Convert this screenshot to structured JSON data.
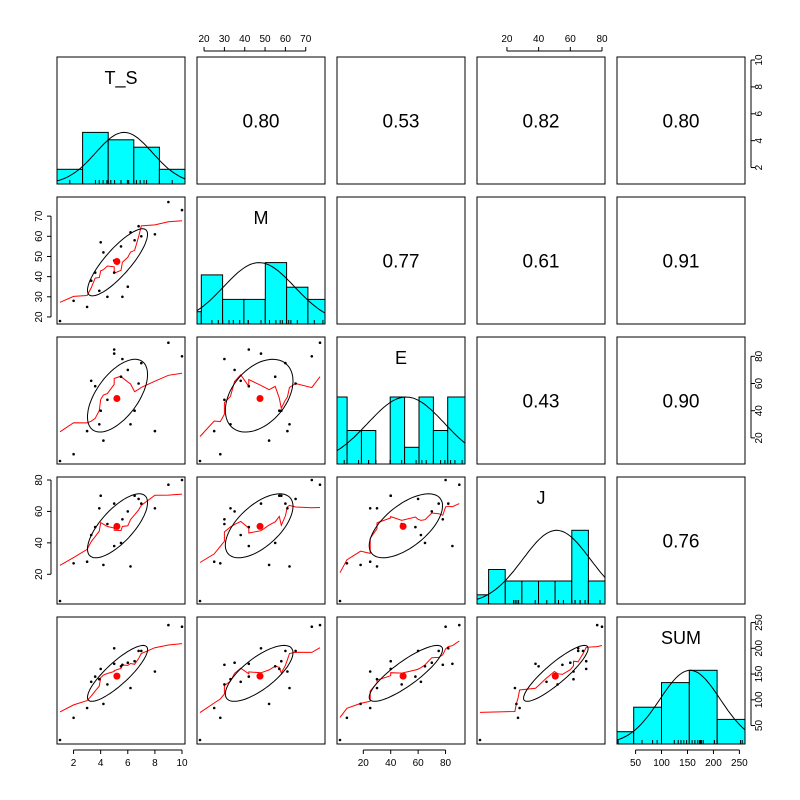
{
  "chart_data": {
    "type": "scatter",
    "chart_kind": "pairs scatterplot matrix (pairs.panels)",
    "variables": [
      "T_S",
      "M",
      "E",
      "J",
      "SUM"
    ],
    "ranges": {
      "T_S": [
        1,
        10
      ],
      "M": [
        18,
        78
      ],
      "E": [
        3,
        92
      ],
      "J": [
        3,
        80
      ],
      "SUM": [
        20,
        255
      ]
    },
    "means": {
      "T_S": 5.2,
      "M": 47.5,
      "E": 49,
      "J": 50.5,
      "SUM": 146
    },
    "ticks": {
      "T_S": [
        "2",
        "4",
        "6",
        "8",
        "10"
      ],
      "M": [
        "20",
        "30",
        "40",
        "50",
        "60",
        "70"
      ],
      "E": [
        "20",
        "40",
        "60",
        "80"
      ],
      "J": [
        "20",
        "40",
        "60",
        "80"
      ],
      "SUM": [
        "50",
        "100",
        "150",
        "200",
        "250"
      ]
    },
    "hist_count_ticks": [
      "2",
      "4",
      "6",
      "8",
      "10"
    ],
    "correlations": [
      {
        "row": "T_S",
        "col": "M",
        "text": "0.80"
      },
      {
        "row": "T_S",
        "col": "E",
        "text": "0.53"
      },
      {
        "row": "T_S",
        "col": "J",
        "text": "0.82"
      },
      {
        "row": "T_S",
        "col": "SUM",
        "text": "0.80"
      },
      {
        "row": "M",
        "col": "E",
        "text": "0.77"
      },
      {
        "row": "M",
        "col": "J",
        "text": "0.61"
      },
      {
        "row": "M",
        "col": "SUM",
        "text": "0.91"
      },
      {
        "row": "E",
        "col": "J",
        "text": "0.43"
      },
      {
        "row": "E",
        "col": "SUM",
        "text": "0.90"
      },
      {
        "row": "J",
        "col": "SUM",
        "text": "0.76"
      }
    ],
    "histograms": {
      "T_S": {
        "bins": [
          0,
          2,
          4,
          6,
          8,
          10
        ],
        "counts": [
          2,
          7,
          6,
          5,
          2
        ],
        "ymax": 10
      },
      "M": {
        "bins": [
          18,
          20,
          30,
          40,
          50,
          60,
          70,
          78
        ],
        "counts": [
          1,
          4,
          2,
          2,
          5,
          3,
          2
        ],
        "ymax": 6
      },
      "E": {
        "bins": [
          3,
          10,
          20,
          30,
          40,
          50,
          60,
          70,
          80,
          92
        ],
        "counts": [
          2,
          1,
          1,
          0,
          2,
          0.5,
          2,
          1,
          2
        ],
        "ymax": 2.2
      },
      "J": {
        "bins": [
          3,
          10,
          20,
          30,
          40,
          50,
          60,
          70,
          80
        ],
        "counts": [
          0.4,
          1.5,
          1,
          1,
          1,
          1,
          3.2,
          1
        ],
        "ymax": 3.2
      },
      "SUM": {
        "bins": [
          20,
          50,
          100,
          150,
          200,
          250
        ],
        "counts": [
          1,
          3,
          5,
          6,
          2
        ],
        "ymax": 6
      }
    },
    "points": [
      {
        "T_S": 1,
        "M": 18,
        "E": 3,
        "J": 3,
        "SUM": 22
      },
      {
        "T_S": 2,
        "M": 28,
        "E": 8,
        "J": 27,
        "SUM": 65
      },
      {
        "T_S": 3,
        "M": 25,
        "E": 25,
        "J": 28,
        "SUM": 84
      },
      {
        "T_S": 3.3,
        "M": 38,
        "E": 62,
        "J": 45,
        "SUM": 135
      },
      {
        "T_S": 3.6,
        "M": 42,
        "E": 58,
        "J": 50,
        "SUM": 145
      },
      {
        "T_S": 3.9,
        "M": 33,
        "E": 30,
        "J": 62,
        "SUM": 140
      },
      {
        "T_S": 4,
        "M": 57,
        "E": 40,
        "J": 70,
        "SUM": 160
      },
      {
        "T_S": 4.2,
        "M": 52,
        "E": 18,
        "J": 26,
        "SUM": 92
      },
      {
        "T_S": 4.5,
        "M": 30,
        "E": 48,
        "J": 52,
        "SUM": 130
      },
      {
        "T_S": 5,
        "M": 48,
        "E": 82,
        "J": 65,
        "SUM": 200
      },
      {
        "T_S": 5,
        "M": 42,
        "E": 85,
        "J": 38,
        "SUM": 170
      },
      {
        "T_S": 5.5,
        "M": 55,
        "E": 65,
        "J": 40,
        "SUM": 165
      },
      {
        "T_S": 5.6,
        "M": 30,
        "E": 78,
        "J": 55,
        "SUM": 168
      },
      {
        "T_S": 6,
        "M": 35,
        "E": 70,
        "J": 60,
        "SUM": 172
      },
      {
        "T_S": 6.2,
        "M": 62,
        "E": 30,
        "J": 25,
        "SUM": 123
      },
      {
        "T_S": 6.5,
        "M": 58,
        "E": 40,
        "J": 70,
        "SUM": 175
      },
      {
        "T_S": 6.8,
        "M": 65,
        "E": 60,
        "J": 68,
        "SUM": 195
      },
      {
        "T_S": 7,
        "M": 60,
        "E": 75,
        "J": 65,
        "SUM": 195
      },
      {
        "T_S": 8,
        "M": 61,
        "E": 25,
        "J": 62,
        "SUM": 155
      },
      {
        "T_S": 9,
        "M": 77,
        "E": 90,
        "J": 77,
        "SUM": 245
      },
      {
        "T_S": 10,
        "M": 73,
        "E": 80,
        "J": 80,
        "SUM": 242
      }
    ],
    "style": {
      "histogram_fill": "#00ffff",
      "point_color": "#000000",
      "mean_color": "#ff0000",
      "smooth_color": "#ff0000",
      "ellipse_color": "#000000",
      "density_color": "#000000"
    }
  }
}
